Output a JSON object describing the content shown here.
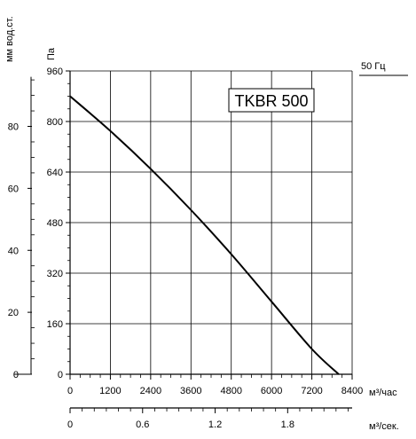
{
  "chart_data": {
    "type": "line",
    "title": "TKBR 500",
    "frequency_label": "50 Гц",
    "left_axis": {
      "label": "мм вод.ст.",
      "ticks": [
        0,
        20,
        40,
        60,
        80
      ]
    },
    "y_axis": {
      "label": "Па",
      "ylim": [
        0,
        960
      ],
      "ticks": [
        0,
        160,
        320,
        480,
        640,
        800,
        960
      ]
    },
    "x_axis": {
      "label": "м³/час",
      "xlim": [
        0,
        8400
      ],
      "ticks": [
        0,
        1200,
        2400,
        3600,
        4800,
        6000,
        7200,
        8400
      ]
    },
    "x_axis_secondary": {
      "label": "м³/сек.",
      "ticks": [
        "0",
        "0.6",
        "1.2",
        "1.8"
      ],
      "tick_values": [
        0,
        0.6,
        1.2,
        1.8
      ]
    },
    "grid": true,
    "series": [
      {
        "x": [
          0,
          1200,
          2400,
          3600,
          4800,
          6000,
          7200,
          8000
        ],
        "y": [
          880,
          770,
          650,
          520,
          380,
          230,
          80,
          0
        ]
      }
    ]
  }
}
